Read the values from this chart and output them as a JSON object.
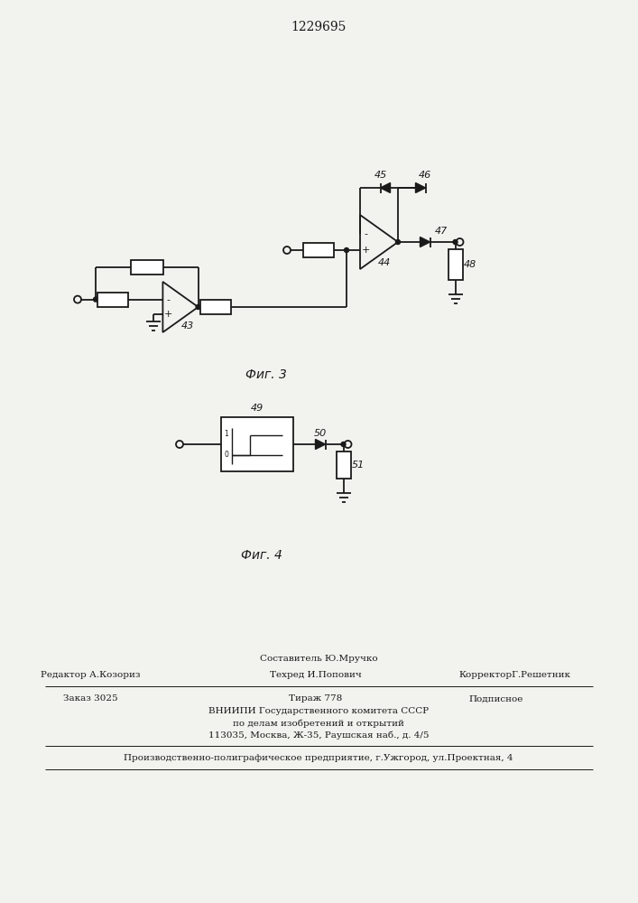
{
  "title": "1229695",
  "fig3_label": "Фиг. 3",
  "fig4_label": "Фиг. 4",
  "bg_color": "#f2f2ee",
  "line_color": "#1a1a1a",
  "footer_line0_center": "Составитель Ю.Мручко",
  "footer_line1_left": "Редактор А.Козориз",
  "footer_line1_center": "Техред И.Попович",
  "footer_line1_right": "КорректорГ.Решетник",
  "footer_line2_left": "Заказ 3025",
  "footer_line2_center": "Тираж 778",
  "footer_line2_right": "Подписное",
  "footer_line3": "ВНИИПИ Государственного комитета СССР",
  "footer_line4": "по делам изобретений и открытий",
  "footer_line5": "113035, Москва, Ж-35, Раушская наб., д. 4/5",
  "footer_line6": "Производственно-полиграфическое предприятие, г.Ужгород, ул.Проектная, 4"
}
